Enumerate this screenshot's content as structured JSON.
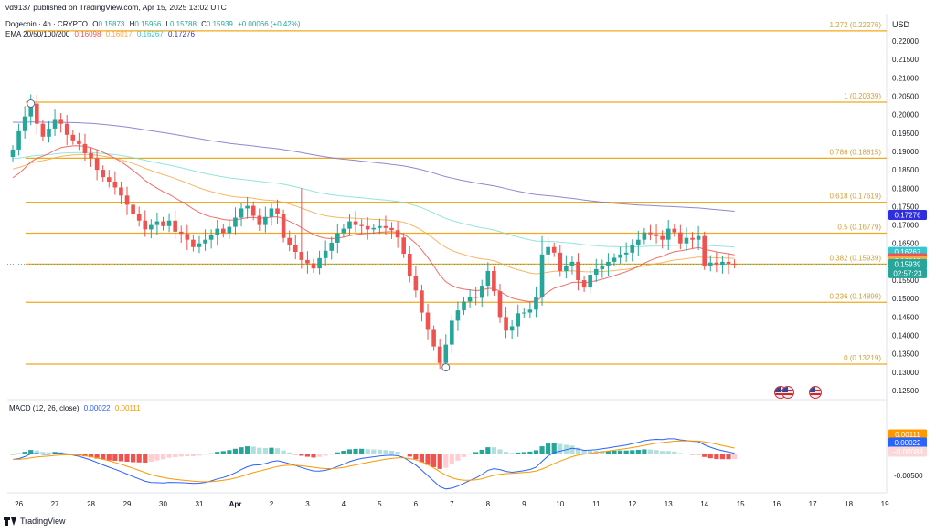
{
  "header": {
    "published": "vd9137 published on TradingView.com, Apr 15, 2025 13:02 UTC",
    "symbol": "Dogecoin · 4h · CRYPTO",
    "ohlc": {
      "o_label": "O",
      "o": "0.15873",
      "h_label": "H",
      "h": "0.15956",
      "l_label": "L",
      "l": "0.15788",
      "c_label": "C",
      "c": "0.15939",
      "change": "+0.00066 (+0.42%)"
    },
    "ema_label": "EMA 20/50/100/200",
    "ema_values": [
      "0.16098",
      "0.16017",
      "0.16267",
      "0.17276"
    ],
    "currency": "USD"
  },
  "colors": {
    "up": "#26a69a",
    "down": "#ef5350",
    "ema20": "#ef5350",
    "ema50": "#f7a94a",
    "ema100": "#7fe0d6",
    "ema200": "#7e72c9",
    "fib": "#f0a81f",
    "macd": "#2962ff",
    "signal": "#ff9800"
  },
  "price_axis": {
    "ticks": [
      "0.22000",
      "0.21500",
      "0.21000",
      "0.20500",
      "0.20000",
      "0.19500",
      "0.19000",
      "0.18500",
      "0.18000",
      "0.17500",
      "0.17000",
      "0.16500",
      "0.16000",
      "0.15500",
      "0.15000",
      "0.14500",
      "0.14000",
      "0.13500",
      "0.13000",
      "0.12500"
    ],
    "tick_values": [
      0.22,
      0.215,
      0.21,
      0.205,
      0.2,
      0.195,
      0.19,
      0.185,
      0.18,
      0.175,
      0.17,
      0.165,
      0.16,
      0.155,
      0.15,
      0.145,
      0.14,
      0.135,
      0.13,
      0.125
    ]
  },
  "badges": [
    {
      "text": "0.17276",
      "value": 0.17276,
      "color": "#2e2ee0"
    },
    {
      "text": "0.16267",
      "value": 0.16267,
      "color": "#37c6d0"
    },
    {
      "text": "0.16098",
      "value": 0.16098,
      "color": "#ef5350"
    },
    {
      "text": "0.16017",
      "value": 0.16017,
      "color": "#f7a94a"
    },
    {
      "text": "0.15939",
      "value": 0.15939,
      "color": "#26a69a"
    },
    {
      "text": "02:57:23",
      "value": 0.15839,
      "color": "#26a69a"
    }
  ],
  "fib_levels": [
    {
      "label": "1.272 (0.22276)",
      "value": 0.22276
    },
    {
      "label": "1 (0.20339)",
      "value": 0.20339
    },
    {
      "label": "0.786 (0.18815)",
      "value": 0.18815
    },
    {
      "label": "0.618 (0.17619)",
      "value": 0.17619
    },
    {
      "label": "0.5 (0.16779)",
      "value": 0.16779
    },
    {
      "label": "0.382 (0.15939)",
      "value": 0.15939
    },
    {
      "label": "0.236 (0.14899)",
      "value": 0.14899
    },
    {
      "label": "0 (0.13219)",
      "value": 0.13219
    }
  ],
  "macd": {
    "title": "MACD (12, 26, close)",
    "values": [
      "0.00022",
      "0.00111"
    ],
    "axis_ticks": [
      "0.00500",
      "-0.00500"
    ],
    "axis_values": [
      0.005,
      -0.005
    ],
    "badges": [
      {
        "text": "0.00111",
        "value": 0.00111,
        "color": "#ff9800"
      },
      {
        "text": "0.00022",
        "value": 0.00022,
        "color": "#2962ff"
      },
      {
        "text": "−0.00088",
        "value": -0.00088,
        "color": "#fcd7d7",
        "text_color": "#131722"
      }
    ]
  },
  "time_axis": [
    {
      "label": "26",
      "i": 1
    },
    {
      "label": "27",
      "i": 7
    },
    {
      "label": "28",
      "i": 13
    },
    {
      "label": "29",
      "i": 19
    },
    {
      "label": "30",
      "i": 25
    },
    {
      "label": "31",
      "i": 31
    },
    {
      "label": "Apr",
      "i": 37,
      "bold": true
    },
    {
      "label": "2",
      "i": 43
    },
    {
      "label": "3",
      "i": 49
    },
    {
      "label": "4",
      "i": 55
    },
    {
      "label": "5",
      "i": 61
    },
    {
      "label": "6",
      "i": 67
    },
    {
      "label": "7",
      "i": 73
    },
    {
      "label": "8",
      "i": 79
    },
    {
      "label": "9",
      "i": 85
    },
    {
      "label": "10",
      "i": 91
    },
    {
      "label": "11",
      "i": 97
    },
    {
      "label": "12",
      "i": 103
    },
    {
      "label": "13",
      "i": 109
    },
    {
      "label": "14",
      "i": 115
    },
    {
      "label": "15",
      "i": 121
    },
    {
      "label": "16",
      "i": 127
    },
    {
      "label": "17",
      "i": 133
    },
    {
      "label": "18",
      "i": 139
    },
    {
      "label": "19",
      "i": 145
    }
  ],
  "footer": {
    "brand": "TradingView"
  },
  "chart_data": {
    "type": "candlestick",
    "interval": "4h",
    "candles_close": [
      0.1905,
      0.1955,
      0.1995,
      0.203,
      0.1975,
      0.194,
      0.1962,
      0.1988,
      0.1975,
      0.1945,
      0.193,
      0.192,
      0.1895,
      0.1882,
      0.185,
      0.183,
      0.1818,
      0.1802,
      0.178,
      0.1755,
      0.173,
      0.1712,
      0.1688,
      0.17,
      0.171,
      0.1697,
      0.1712,
      0.1682,
      0.1676,
      0.166,
      0.164,
      0.165,
      0.166,
      0.1672,
      0.169,
      0.1678,
      0.1695,
      0.172,
      0.1745,
      0.1752,
      0.1725,
      0.17,
      0.1722,
      0.1745,
      0.173,
      0.1665,
      0.1645,
      0.1627,
      0.1605,
      0.1596,
      0.1582,
      0.161,
      0.163,
      0.1652,
      0.1678,
      0.169,
      0.171,
      0.17,
      0.1697,
      0.1688,
      0.1692,
      0.1697,
      0.1692,
      0.1686,
      0.1666,
      0.1622,
      0.156,
      0.1522,
      0.1462,
      0.1415,
      0.137,
      0.1325,
      0.1375,
      0.144,
      0.1468,
      0.1492,
      0.1505,
      0.1502,
      0.1535,
      0.1575,
      0.152,
      0.145,
      0.1413,
      0.1425,
      0.146,
      0.1462,
      0.147,
      0.1505,
      0.162,
      0.164,
      0.1625,
      0.1575,
      0.159,
      0.16,
      0.155,
      0.153,
      0.1565,
      0.158,
      0.159,
      0.16,
      0.1611,
      0.162,
      0.1625,
      0.1645,
      0.166,
      0.168,
      0.1675,
      0.167,
      0.166,
      0.169,
      0.168,
      0.165,
      0.1665,
      0.166,
      0.167,
      0.159,
      0.1598,
      0.1592,
      0.16,
      0.1595,
      0.1594
    ],
    "price_range": [
      0.1225,
      0.2235
    ],
    "last_close": 0.15939,
    "ema20_last": 0.16098,
    "ema50_last": 0.16017,
    "ema100_last": 0.16267,
    "ema200_last": 0.17276,
    "macd_line_last": 0.00022,
    "signal_line_last": 0.00111,
    "macd_histogram_last": -0.00088
  }
}
